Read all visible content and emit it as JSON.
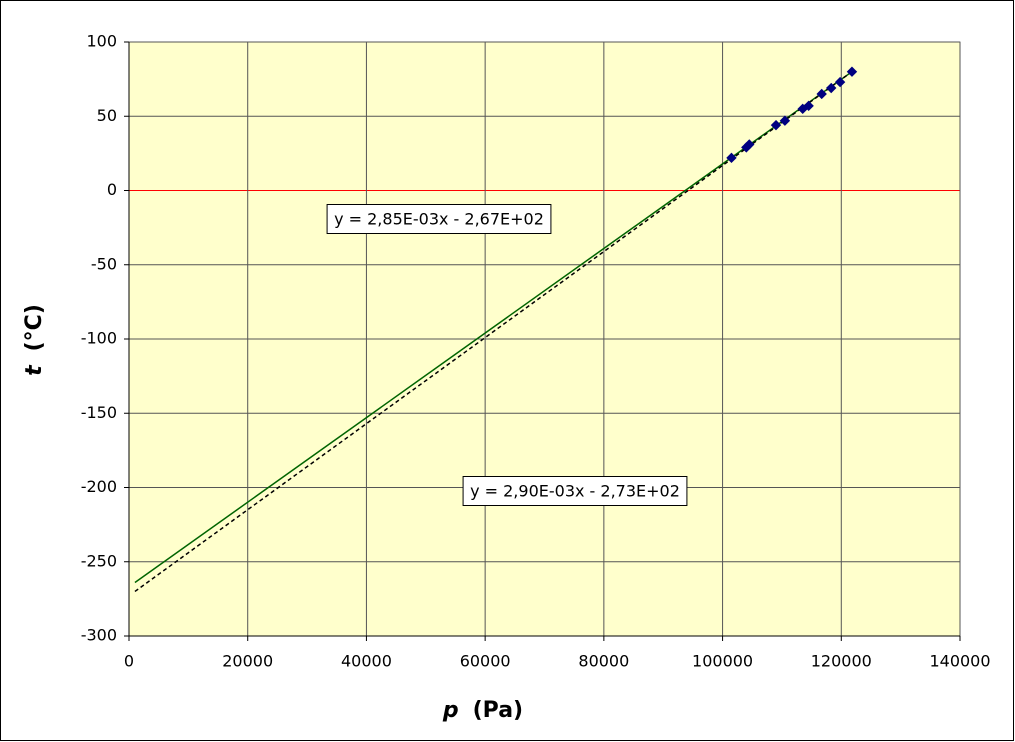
{
  "chart_data": {
    "type": "scatter",
    "x_label_symbol": "p",
    "x_label_unit": "(Pa)",
    "y_label_symbol": "t",
    "y_label_unit": "(°C)",
    "xlim": [
      0,
      140000
    ],
    "xticks": [
      0,
      20000,
      40000,
      60000,
      80000,
      100000,
      120000,
      140000
    ],
    "ylim": [
      -300,
      100
    ],
    "yticks": [
      -300,
      -250,
      -200,
      -150,
      -100,
      -50,
      0,
      50,
      100
    ],
    "grid": true,
    "grid_color": "#555555",
    "plot_background": "#FFFFCC",
    "zero_line_color": "#FF0000",
    "series": [
      {
        "style": "markers",
        "color": "#000080",
        "x": [
          101500,
          104000,
          104500,
          109000,
          110500,
          113500,
          114500,
          116700,
          118300,
          119800,
          121800
        ],
        "values": [
          22,
          29,
          31,
          44,
          47,
          55,
          57,
          65,
          69,
          73,
          80
        ]
      },
      {
        "style": "solid",
        "color": "#006400",
        "x": [
          1000,
          121800
        ],
        "values": [
          -264,
          80
        ]
      },
      {
        "style": "dashed",
        "color": "#000000",
        "x": [
          1000,
          121800
        ],
        "values": [
          -270,
          80
        ]
      }
    ],
    "annotations": [
      "y = 2,85E-03x - 2,67E+02",
      "y = 2,90E-03x - 2,73E+02"
    ]
  }
}
